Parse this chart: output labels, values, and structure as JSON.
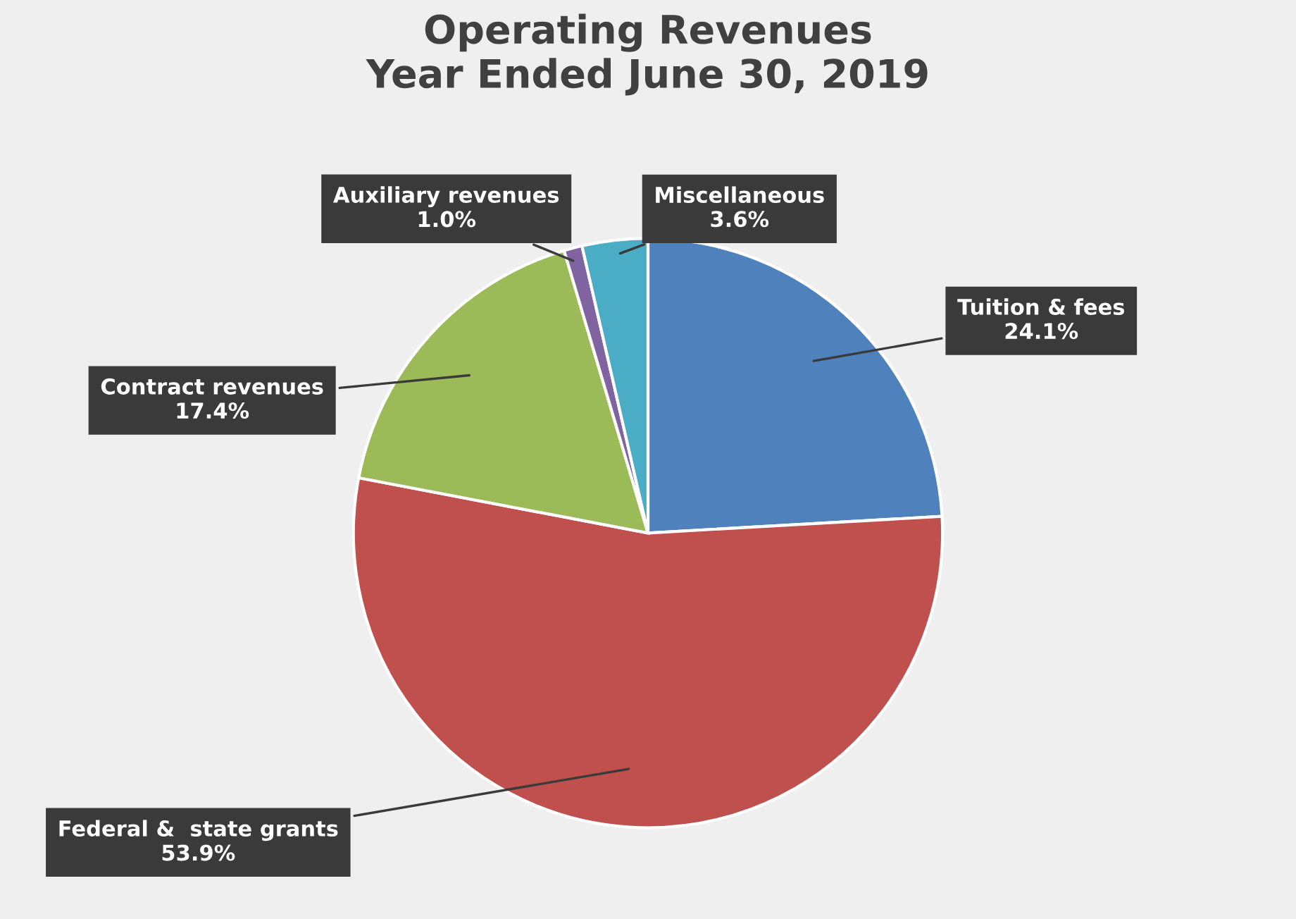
{
  "chart_data": {
    "type": "pie",
    "title": "Operating Revenues\nYear Ended June 30, 2019",
    "categories": [
      "Tuition & fees",
      "Federal &  state grants",
      "Contract revenues",
      "Auxiliary revenues",
      "Miscellaneous"
    ],
    "values": [
      24.1,
      53.9,
      17.4,
      1.0,
      3.6
    ],
    "value_labels": [
      "24.1%",
      "53.9%",
      "17.4%",
      "1.0%",
      "3.6%"
    ],
    "colors": [
      "#4f81bd",
      "#c0504d",
      "#9bbb59",
      "#8064a2",
      "#4bacc6"
    ]
  }
}
